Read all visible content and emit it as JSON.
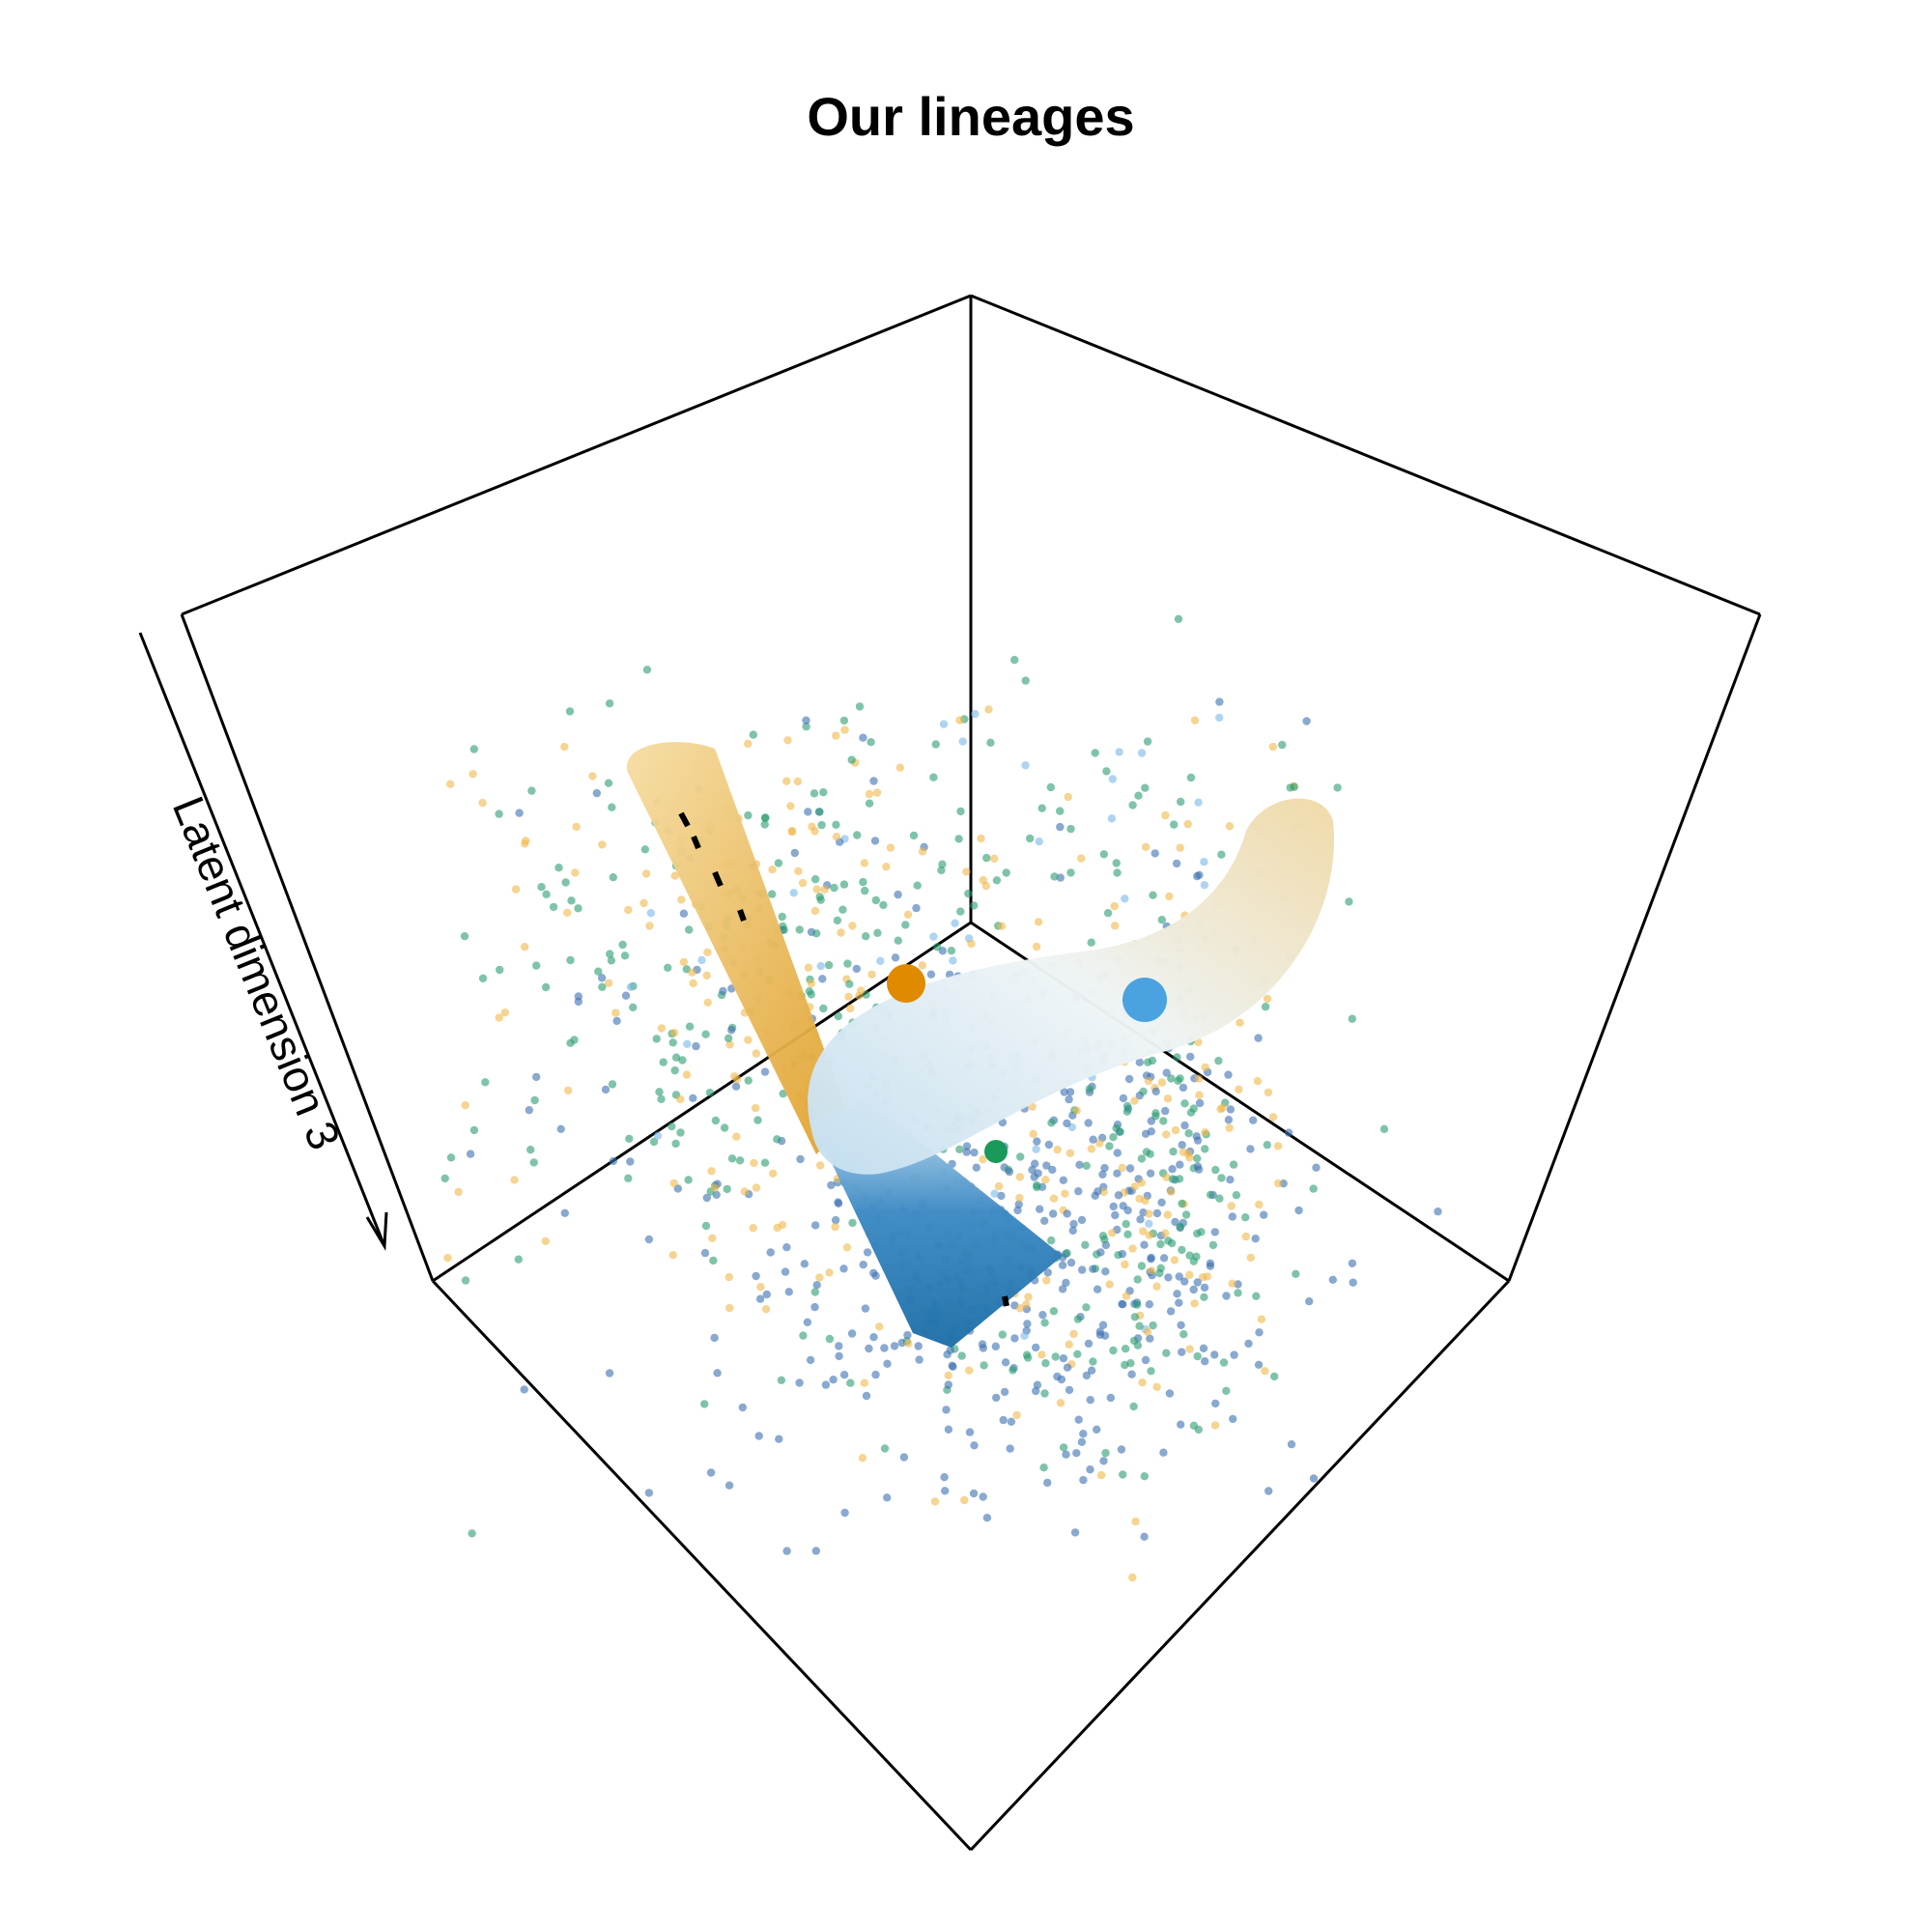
{
  "chart_data": {
    "type": "scatter",
    "title": "Our lineages",
    "zlabel": "Latent dimension 3",
    "grid": false,
    "legend": "none",
    "box": "3d-cube-wireframe",
    "series": [
      {
        "color": "#3b6fb0"
      },
      {
        "color": "#2a9d6f"
      },
      {
        "color": "#f0b84a"
      },
      {
        "color": "#7ab8e8"
      }
    ],
    "lineages": [
      {
        "color_start": "#f5d99a",
        "color_end": "#e0a02a"
      },
      {
        "color_start": "#f3ddaa",
        "color_end": "#1f6fa8"
      }
    ],
    "start_points": [
      {
        "color": "#e08a00"
      },
      {
        "color": "#4aa3e0"
      },
      {
        "color": "#1a9a5a"
      }
    ]
  }
}
